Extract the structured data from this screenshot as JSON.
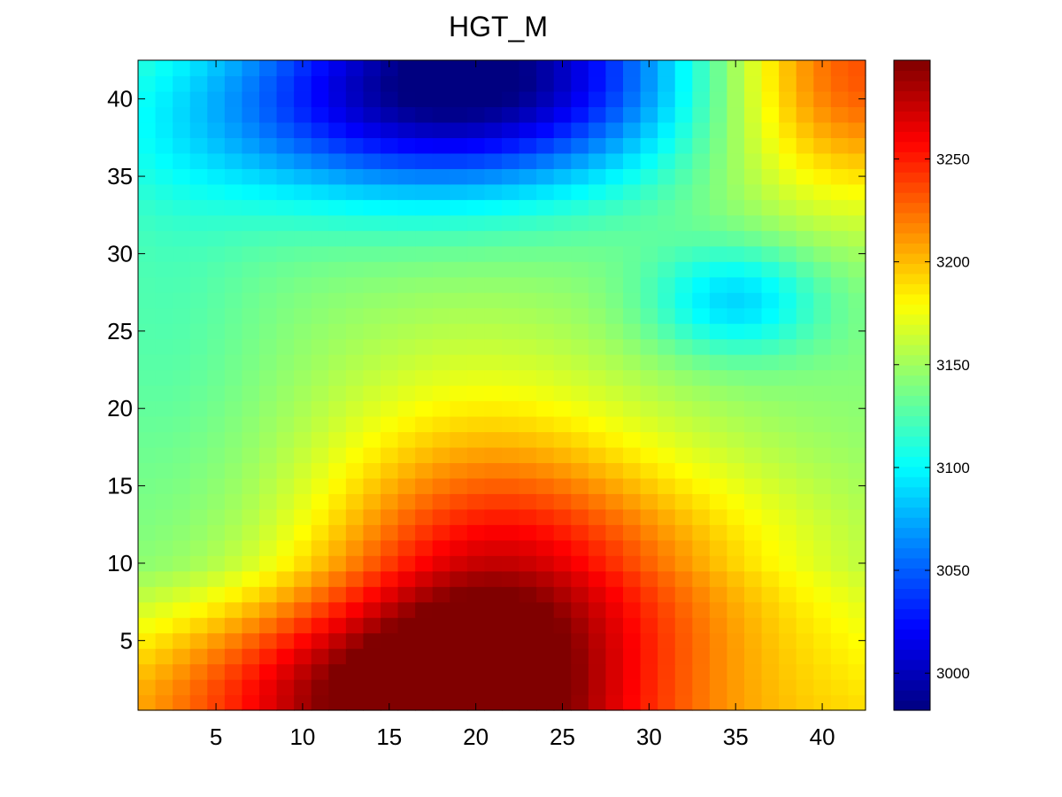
{
  "chart_data": {
    "type": "heatmap",
    "title": "HGT_M",
    "xlabel": "",
    "ylabel": "",
    "xlim": [
      1,
      42
    ],
    "ylim": [
      1,
      42
    ],
    "x_ticks": [
      5,
      10,
      15,
      20,
      25,
      30,
      35,
      40
    ],
    "y_ticks": [
      5,
      10,
      15,
      20,
      25,
      30,
      35,
      40
    ],
    "colormap": "jet",
    "colorbar": {
      "range": [
        2982,
        3298
      ],
      "ticks": [
        3000,
        3050,
        3100,
        3150,
        3200,
        3250
      ]
    },
    "grid_size": [
      42,
      42
    ],
    "field_description": "Terrain height grid. High values (~3290) near x=20 at the bottom, low values (~2990) near x=19-20 at the top, a local low (~3085) near x=35, y=27, high values (~3230) in the top-right corner.",
    "field_components": [
      {
        "kind": "base",
        "value": 3140
      },
      {
        "kind": "peak",
        "x": 20,
        "y": 3,
        "amplitude": 130,
        "sx": 7,
        "sy": 11
      },
      {
        "kind": "peak",
        "x": 30,
        "y": 9,
        "amplitude": 50,
        "sx": 9,
        "sy": 6
      },
      {
        "kind": "peak",
        "x": 10,
        "y": 2,
        "amplitude": 60,
        "sx": 7,
        "sy": 4
      },
      {
        "kind": "ramp",
        "y_from": 10,
        "y_to": 1,
        "amplitude": 40
      },
      {
        "kind": "trough",
        "x": 20,
        "y": 42,
        "amplitude": 150,
        "sx": 9,
        "sy": 5
      },
      {
        "kind": "trough",
        "x": 12,
        "y": 38,
        "amplitude": 40,
        "sx": 10,
        "sy": 4
      },
      {
        "kind": "trough",
        "x": 35,
        "y": 27,
        "amplitude": 55,
        "sx": 3.5,
        "sy": 2.5
      },
      {
        "kind": "peak",
        "x": 42,
        "y": 42,
        "amplitude": 100,
        "sx": 6,
        "sy": 6
      },
      {
        "kind": "trough",
        "x": 2,
        "y": 27,
        "amplitude": 15,
        "sx": 4,
        "sy": 8
      }
    ]
  }
}
